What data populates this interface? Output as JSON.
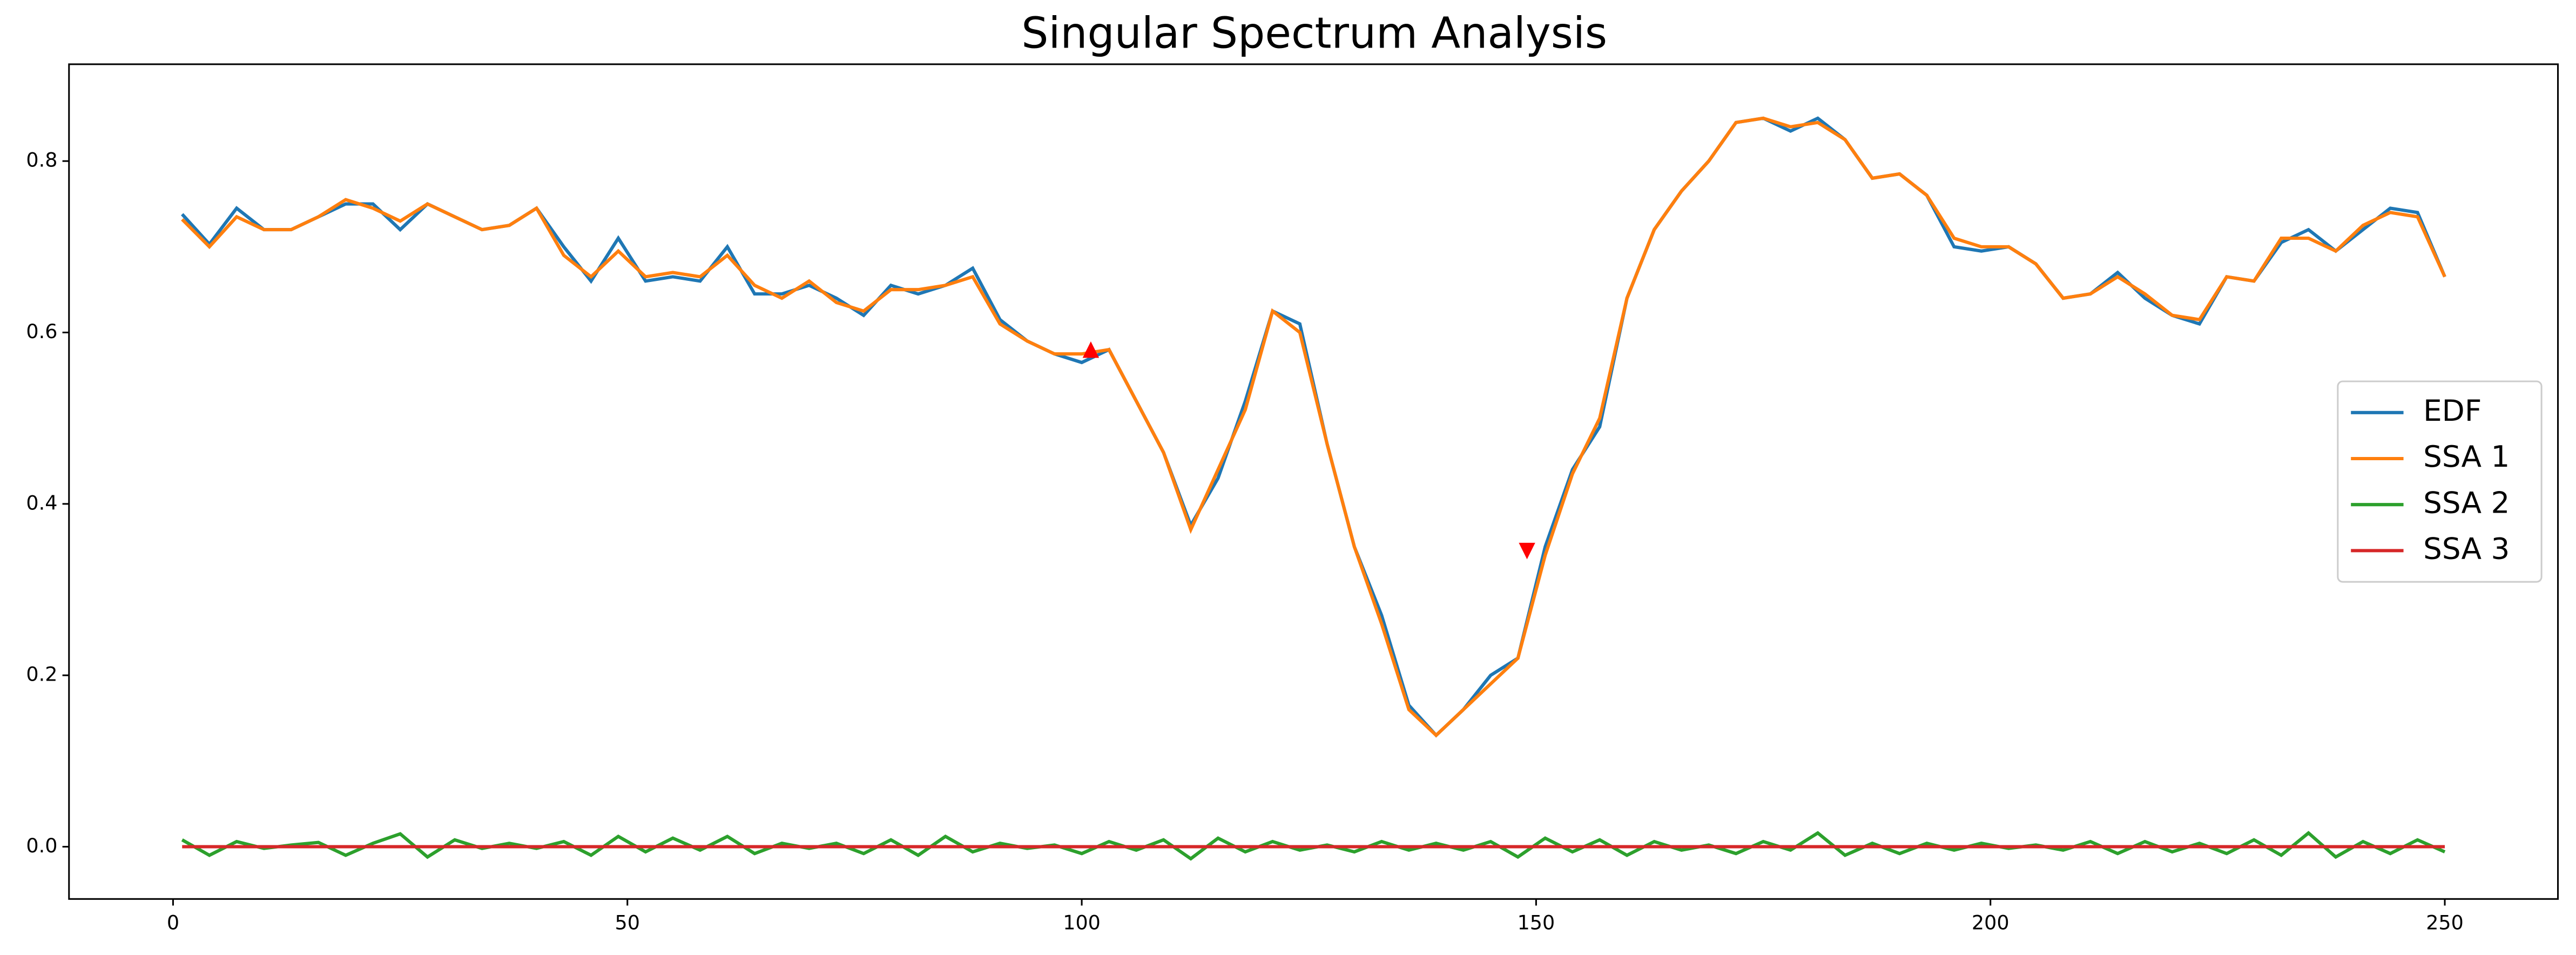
{
  "chart_data": {
    "type": "line",
    "title": "Singular Spectrum Analysis",
    "x": [
      1,
      4,
      7,
      10,
      13,
      16,
      19,
      22,
      25,
      28,
      31,
      34,
      37,
      40,
      43,
      46,
      49,
      52,
      55,
      58,
      61,
      64,
      67,
      70,
      73,
      76,
      79,
      82,
      85,
      88,
      91,
      94,
      97,
      100,
      103,
      106,
      109,
      112,
      115,
      118,
      121,
      124,
      127,
      130,
      133,
      136,
      139,
      142,
      145,
      148,
      151,
      154,
      157,
      160,
      163,
      166,
      169,
      172,
      175,
      178,
      181,
      184,
      187,
      190,
      193,
      196,
      199,
      202,
      205,
      208,
      211,
      214,
      217,
      220,
      223,
      226,
      229,
      232,
      235,
      238,
      241,
      244,
      247,
      250
    ],
    "series": [
      {
        "name": "EDF",
        "color": "#1f77b4",
        "values": [
          0.738,
          0.703,
          0.745,
          0.72,
          0.72,
          0.735,
          0.75,
          0.75,
          0.72,
          0.75,
          0.735,
          0.72,
          0.725,
          0.745,
          0.7,
          0.66,
          0.71,
          0.66,
          0.665,
          0.66,
          0.7,
          0.645,
          0.645,
          0.655,
          0.64,
          0.62,
          0.655,
          0.645,
          0.655,
          0.675,
          0.615,
          0.59,
          0.575,
          0.565,
          0.58,
          0.52,
          0.46,
          0.375,
          0.43,
          0.52,
          0.625,
          0.61,
          0.47,
          0.35,
          0.27,
          0.165,
          0.13,
          0.16,
          0.2,
          0.22,
          0.35,
          0.44,
          0.49,
          0.64,
          0.72,
          0.765,
          0.8,
          0.845,
          0.85,
          0.835,
          0.85,
          0.825,
          0.78,
          0.785,
          0.76,
          0.7,
          0.695,
          0.7,
          0.68,
          0.64,
          0.645,
          0.67,
          0.64,
          0.62,
          0.61,
          0.665,
          0.66,
          0.705,
          0.72,
          0.695,
          0.72,
          0.745,
          0.74,
          0.665
        ]
      },
      {
        "name": "SSA 1",
        "color": "#ff7f0e",
        "values": [
          0.732,
          0.7,
          0.735,
          0.72,
          0.72,
          0.735,
          0.755,
          0.745,
          0.73,
          0.75,
          0.735,
          0.72,
          0.725,
          0.745,
          0.69,
          0.665,
          0.695,
          0.665,
          0.67,
          0.665,
          0.69,
          0.655,
          0.64,
          0.66,
          0.635,
          0.625,
          0.65,
          0.65,
          0.655,
          0.665,
          0.61,
          0.59,
          0.575,
          0.575,
          0.58,
          0.52,
          0.46,
          0.37,
          0.44,
          0.51,
          0.625,
          0.6,
          0.47,
          0.35,
          0.26,
          0.16,
          0.13,
          0.16,
          0.19,
          0.22,
          0.34,
          0.435,
          0.5,
          0.64,
          0.72,
          0.765,
          0.8,
          0.845,
          0.85,
          0.84,
          0.845,
          0.825,
          0.78,
          0.785,
          0.76,
          0.71,
          0.7,
          0.7,
          0.68,
          0.64,
          0.645,
          0.665,
          0.645,
          0.62,
          0.615,
          0.665,
          0.66,
          0.71,
          0.71,
          0.695,
          0.725,
          0.74,
          0.735,
          0.665
        ]
      },
      {
        "name": "SSA 2",
        "color": "#2ca02c",
        "values": [
          0.008,
          -0.01,
          0.006,
          -0.002,
          0.002,
          0.005,
          -0.01,
          0.004,
          0.015,
          -0.012,
          0.008,
          -0.002,
          0.004,
          -0.002,
          0.006,
          -0.01,
          0.012,
          -0.006,
          0.01,
          -0.004,
          0.012,
          -0.008,
          0.004,
          -0.002,
          0.004,
          -0.008,
          0.008,
          -0.01,
          0.012,
          -0.006,
          0.004,
          -0.002,
          0.002,
          -0.008,
          0.006,
          -0.004,
          0.008,
          -0.014,
          0.01,
          -0.006,
          0.006,
          -0.004,
          0.002,
          -0.006,
          0.006,
          -0.004,
          0.004,
          -0.004,
          0.006,
          -0.012,
          0.01,
          -0.006,
          0.008,
          -0.01,
          0.006,
          -0.004,
          0.002,
          -0.008,
          0.006,
          -0.004,
          0.016,
          -0.01,
          0.004,
          -0.008,
          0.004,
          -0.004,
          0.004,
          -0.002,
          0.002,
          -0.004,
          0.006,
          -0.008,
          0.006,
          -0.006,
          0.004,
          -0.008,
          0.008,
          -0.01,
          0.016,
          -0.012,
          0.006,
          -0.008,
          0.008,
          -0.006
        ]
      },
      {
        "name": "SSA 3",
        "color": "#d62728",
        "values": [
          0,
          0,
          0,
          0,
          0,
          0,
          0,
          0,
          0,
          0,
          0,
          0,
          0,
          0,
          0,
          0,
          0,
          0,
          0,
          0,
          0,
          0,
          0,
          0,
          0,
          0,
          0,
          0,
          0,
          0,
          0,
          0,
          0,
          0,
          0,
          0,
          0,
          0,
          0,
          0,
          0,
          0,
          0,
          0,
          0,
          0,
          0,
          0,
          0,
          0,
          0,
          0,
          0,
          0,
          0,
          0,
          0,
          0,
          0,
          0,
          0,
          0,
          0,
          0,
          0,
          0,
          0,
          0,
          0,
          0,
          0,
          0,
          0,
          0,
          0,
          0,
          0,
          0,
          0,
          0,
          0,
          0,
          0,
          0
        ]
      }
    ],
    "markers": [
      {
        "x": 101,
        "y": 0.58,
        "marker": "^",
        "color": "red"
      },
      {
        "x": 149,
        "y": 0.345,
        "marker": "v",
        "color": "red"
      }
    ],
    "xlim": [
      -11.45,
      262.45
    ],
    "xticks": [
      0,
      50,
      100,
      150,
      200,
      250
    ],
    "ylim": [
      -0.061,
      0.913
    ],
    "yticks": [
      {
        "value": 0,
        "label": "0.0"
      },
      0.2,
      0.4,
      0.6,
      0.8
    ],
    "legend": "right"
  }
}
